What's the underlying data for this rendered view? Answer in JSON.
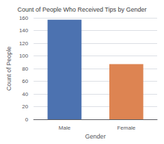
{
  "chart_data": {
    "type": "bar",
    "title": "Count of People Who Received Tips by Gender",
    "xlabel": "Gender",
    "ylabel": "Count of People",
    "categories": [
      "Male",
      "Female"
    ],
    "values": [
      157,
      87
    ],
    "colors": [
      "#4c72b0",
      "#dd8452"
    ],
    "ylim": [
      0,
      160
    ],
    "yticks": [
      0,
      20,
      40,
      60,
      80,
      100,
      120,
      140,
      160
    ],
    "grid": true
  }
}
